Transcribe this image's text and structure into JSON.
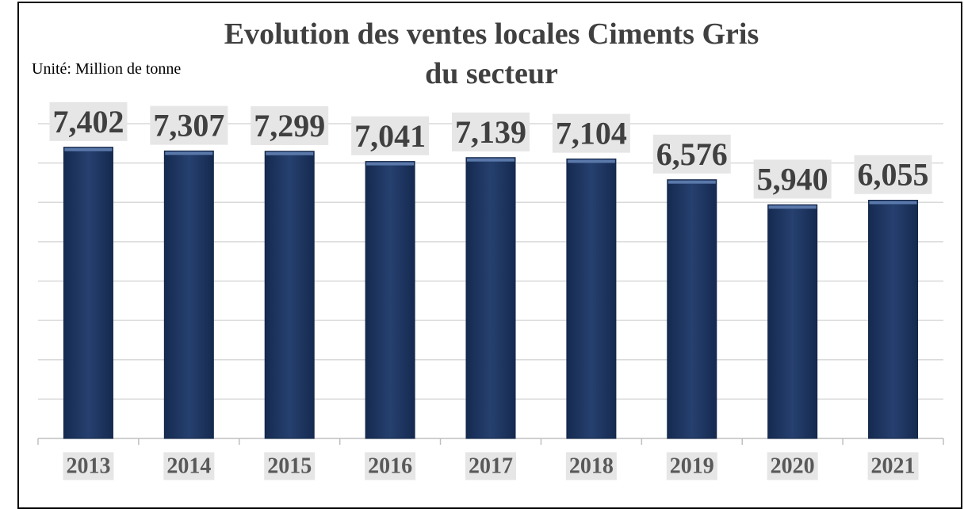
{
  "chart_data": {
    "type": "bar",
    "title": "Evolution des ventes locales Ciments Gris du secteur",
    "subtitle": "Unité: Million de tonne",
    "categories": [
      "2013",
      "2014",
      "2015",
      "2016",
      "2017",
      "2018",
      "2019",
      "2020",
      "2021"
    ],
    "values": [
      7.402,
      7.307,
      7.299,
      7.041,
      7.139,
      7.104,
      6.576,
      5.94,
      6.055
    ],
    "value_labels": [
      "7,402",
      "7,307",
      "7,299",
      "7,041",
      "7,139",
      "7,104",
      "6,576",
      "5,940",
      "6,055"
    ],
    "color": "#203864",
    "ylim": [
      0,
      8
    ],
    "yticks": [
      0,
      1,
      2,
      3,
      4,
      5,
      6,
      7,
      8
    ],
    "grid": true
  }
}
